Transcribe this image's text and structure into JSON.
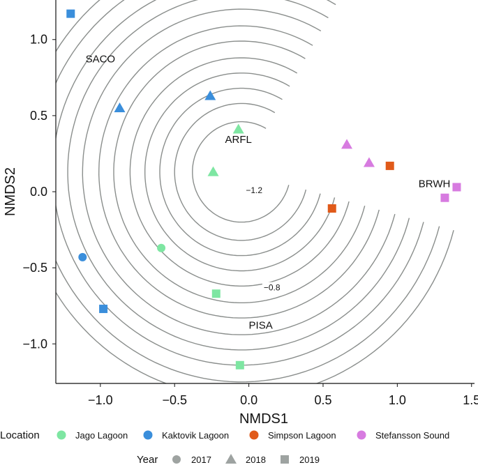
{
  "chart_data": {
    "type": "scatter",
    "title": "",
    "xlabel": "NMDS1",
    "ylabel": "NMDS2",
    "xlim": [
      -1.3,
      1.52
    ],
    "ylim": [
      -1.26,
      1.26
    ],
    "xticks": [
      -1.0,
      -0.5,
      0.0,
      0.5,
      1.0,
      1.5
    ],
    "xtick_labels": [
      "−1.0",
      "−0.5",
      "0.0",
      "0.5",
      "1.0",
      "1.5"
    ],
    "yticks": [
      -1.0,
      -0.5,
      0.0,
      0.5,
      1.0
    ],
    "ytick_labels": [
      "−1.0",
      "−0.5",
      "0.0",
      "0.5",
      "1.0"
    ],
    "grid": false,
    "contour_center": [
      -0.05,
      0.13
    ],
    "contour_radii": [
      0.33,
      0.45,
      0.55,
      0.65,
      0.75,
      0.86,
      0.96,
      1.07,
      1.17,
      1.27,
      1.38,
      1.48
    ],
    "contour_labels": [
      {
        "text": "−1.2",
        "x": -0.02,
        "y": 0.0
      },
      {
        "text": "−0.8",
        "x": 0.1,
        "y": -0.64
      }
    ],
    "species_labels": [
      {
        "text": "SACO",
        "x": -1.0,
        "y": 0.85
      },
      {
        "text": "ARFL",
        "x": -0.07,
        "y": 0.32
      },
      {
        "text": "BRWH",
        "x": 1.25,
        "y": 0.03
      },
      {
        "text": "PISA",
        "x": 0.08,
        "y": -0.9
      }
    ],
    "points": [
      {
        "location": "Kaktovik Lagoon",
        "year": "2019",
        "x": -1.2,
        "y": 1.17
      },
      {
        "location": "Kaktovik Lagoon",
        "year": "2018",
        "x": -0.87,
        "y": 0.55
      },
      {
        "location": "Kaktovik Lagoon",
        "year": "2018",
        "x": -0.26,
        "y": 0.63
      },
      {
        "location": "Kaktovik Lagoon",
        "year": "2017",
        "x": -1.12,
        "y": -0.43
      },
      {
        "location": "Kaktovik Lagoon",
        "year": "2019",
        "x": -0.98,
        "y": -0.77
      },
      {
        "location": "Jago Lagoon",
        "year": "2018",
        "x": -0.07,
        "y": 0.41
      },
      {
        "location": "Jago Lagoon",
        "year": "2018",
        "x": -0.24,
        "y": 0.13
      },
      {
        "location": "Jago Lagoon",
        "year": "2017",
        "x": -0.59,
        "y": -0.37
      },
      {
        "location": "Jago Lagoon",
        "year": "2019",
        "x": -0.22,
        "y": -0.67
      },
      {
        "location": "Jago Lagoon",
        "year": "2019",
        "x": -0.06,
        "y": -1.14
      },
      {
        "location": "Stefansson Sound",
        "year": "2018",
        "x": 0.66,
        "y": 0.31
      },
      {
        "location": "Stefansson Sound",
        "year": "2018",
        "x": 0.81,
        "y": 0.19
      },
      {
        "location": "Stefansson Sound",
        "year": "2019",
        "x": 1.4,
        "y": 0.03
      },
      {
        "location": "Stefansson Sound",
        "year": "2019",
        "x": 1.32,
        "y": -0.04
      },
      {
        "location": "Simpson Lagoon",
        "year": "2019",
        "x": 0.95,
        "y": 0.17
      },
      {
        "location": "Simpson Lagoon",
        "year": "2019",
        "x": 0.56,
        "y": -0.11
      }
    ],
    "legend": {
      "placement": "bottom",
      "location_title": "Location",
      "locations": [
        {
          "name": "Jago Lagoon",
          "color": "#7EE6A2"
        },
        {
          "name": "Kaktovik Lagoon",
          "color": "#3A8EDB"
        },
        {
          "name": "Simpson Lagoon",
          "color": "#E05A1A"
        },
        {
          "name": "Stefansson Sound",
          "color": "#D77BE0"
        }
      ],
      "year_title": "Year",
      "years": [
        {
          "name": "2017",
          "shape": "circle"
        },
        {
          "name": "2018",
          "shape": "triangle"
        },
        {
          "name": "2019",
          "shape": "square"
        }
      ],
      "year_symbol_color": "#9EA3A1"
    },
    "contour_color": "#8A8E8C",
    "axis_color": "#111111"
  }
}
